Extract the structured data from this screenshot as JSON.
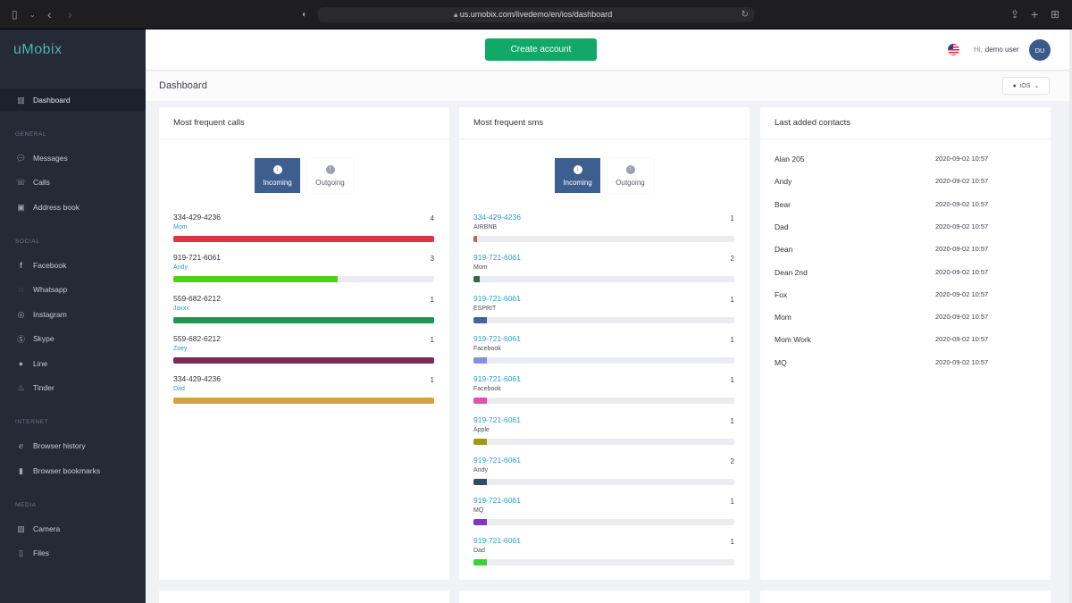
{
  "browser": {
    "url": "us.umobix.com/livedemo/en/ios/dashboard"
  },
  "brand": {
    "name": "uMobix"
  },
  "sidebar": {
    "dashboard": "Dashboard",
    "general_title": "GENERAL",
    "general": [
      "Messages",
      "Calls",
      "Address book"
    ],
    "social_title": "SOCIAL",
    "social": [
      "Facebook",
      "Whatsapp",
      "Instagram",
      "Skype",
      "Line",
      "Tinder"
    ],
    "internet_title": "INTERNET",
    "internet": [
      "Browser history",
      "Browser bookmarks"
    ],
    "media_title": "MEDIA",
    "media": [
      "Camera",
      "Files"
    ]
  },
  "header": {
    "create_label": "Create account",
    "greeting": "Hi,",
    "user": "demo user",
    "avatar": "DU",
    "flag_icon": "us-flag-icon"
  },
  "page": {
    "title": "Dashboard",
    "os": "iOS"
  },
  "calls": {
    "title": "Most frequent calls",
    "tabs": [
      "Incoming",
      "Outgoing"
    ],
    "items": [
      {
        "number": "334-429-4236",
        "name": "Mom",
        "count": "4",
        "fill": 1.0,
        "color": "#dc3545"
      },
      {
        "number": "919-721-6061",
        "name": "Andy",
        "count": "3",
        "fill": 0.63,
        "color": "#52d017"
      },
      {
        "number": "559-682-6212",
        "name": "Jaxxx",
        "count": "1",
        "fill": 1.0,
        "color": "#1a9850"
      },
      {
        "number": "559-682-6212",
        "name": "Zoey",
        "count": "1",
        "fill": 1.0,
        "color": "#7b2a5a"
      },
      {
        "number": "334-429-4236",
        "name": "Dad",
        "count": "1",
        "fill": 1.0,
        "color": "#d4a33d"
      }
    ]
  },
  "sms": {
    "title": "Most frequent sms",
    "tabs": [
      "Incoming",
      "Outgoing"
    ],
    "items": [
      {
        "number": "334-429-4236",
        "name": "AIRBNB",
        "count": "1",
        "fill": 0.012,
        "color": "#c0605a"
      },
      {
        "number": "919-721-6061",
        "name": "Mom",
        "count": "2",
        "fill": 0.025,
        "color": "#2f6b48"
      },
      {
        "number": "919-721-6061",
        "name": "ESPRIT",
        "count": "1",
        "fill": 0.05,
        "color": "#4b5ea0"
      },
      {
        "number": "919-721-6061",
        "name": "Facebook",
        "count": "1",
        "fill": 0.05,
        "color": "#8a8de8"
      },
      {
        "number": "919-721-6061",
        "name": "Facebook",
        "count": "1",
        "fill": 0.05,
        "color": "#e84fa8"
      },
      {
        "number": "919-721-6061",
        "name": "Apple",
        "count": "1",
        "fill": 0.05,
        "color": "#9c9a1a"
      },
      {
        "number": "919-721-6061",
        "name": "Andy",
        "count": "2",
        "fill": 0.05,
        "color": "#304a6a"
      },
      {
        "number": "919-721-6061",
        "name": "MQ",
        "count": "1",
        "fill": 0.05,
        "color": "#7b3ac0"
      },
      {
        "number": "919-721-6061",
        "name": "Dad",
        "count": "1",
        "fill": 0.05,
        "color": "#3ad13a"
      }
    ]
  },
  "contacts": {
    "title": "Last added contacts",
    "items": [
      {
        "name": "Alan 205",
        "date": "2020-09-02 10:57"
      },
      {
        "name": "Andy",
        "date": "2020-09-02 10:57"
      },
      {
        "name": "Bear",
        "date": "2020-09-02 10:57"
      },
      {
        "name": "Dad",
        "date": "2020-09-02 10:57"
      },
      {
        "name": "Dean",
        "date": "2020-09-02 10:57"
      },
      {
        "name": "Dean 2nd",
        "date": "2020-09-02 10:57"
      },
      {
        "name": "Fox",
        "date": "2020-09-02 10:57"
      },
      {
        "name": "Mom",
        "date": "2020-09-02 10:57"
      },
      {
        "name": "Mom Work",
        "date": "2020-09-02 10:57"
      },
      {
        "name": "MQ",
        "date": "2020-09-02 10:57"
      }
    ]
  }
}
